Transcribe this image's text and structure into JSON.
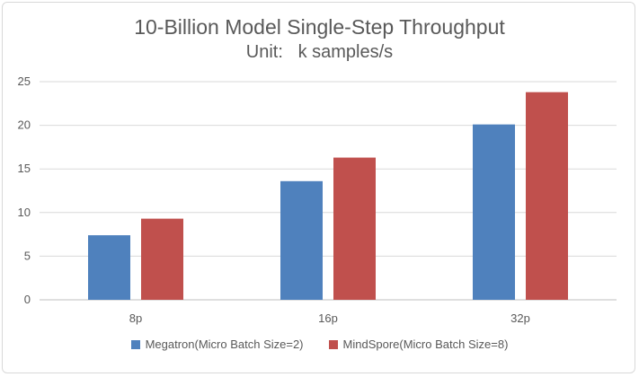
{
  "chart_data": {
    "type": "bar",
    "title": "10-Billion Model Single-Step Throughput",
    "subtitle": "Unit:   k samples/s",
    "categories": [
      "8p",
      "16p",
      "32p"
    ],
    "series": [
      {
        "name": "Megatron(Micro Batch Size=2)",
        "values": [
          7.4,
          13.6,
          20.1
        ],
        "color": "#4f81bd"
      },
      {
        "name": "MindSpore(Micro Batch Size=8)",
        "values": [
          9.3,
          16.3,
          23.8
        ],
        "color": "#c0504d"
      }
    ],
    "ylim": [
      0,
      25
    ],
    "yticks": [
      0,
      5,
      10,
      15,
      20,
      25
    ],
    "grid": true,
    "legend_position": "bottom"
  }
}
